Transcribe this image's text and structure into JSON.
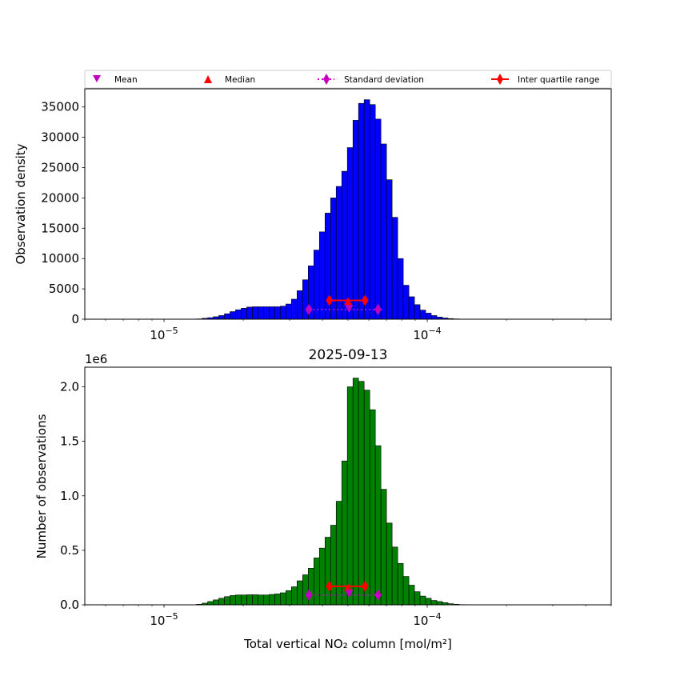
{
  "legend": {
    "placement": "top",
    "entries": [
      {
        "label": "Mean",
        "marker": "triangle-down",
        "color": "#c000c0"
      },
      {
        "label": "Median",
        "marker": "triangle-up",
        "color": "#ff0000"
      },
      {
        "label": "Standard deviation",
        "marker": "diamond-dotted-line",
        "color": "#c000c0"
      },
      {
        "label": "Inter quartile range",
        "marker": "diamond-solid-line",
        "color": "#ff0000"
      }
    ]
  },
  "chart_data": [
    {
      "type": "bar",
      "xscale": "log",
      "xlim": [
        5e-06,
        0.0005
      ],
      "ylim": [
        0,
        38000
      ],
      "title": "",
      "xlabel": "",
      "ylabel": "Observation density",
      "yticks": [
        0,
        5000,
        10000,
        15000,
        20000,
        25000,
        30000,
        35000
      ],
      "ytick_labels": [
        "0",
        "5000",
        "10000",
        "15000",
        "20000",
        "25000",
        "30000",
        "35000"
      ],
      "xtick_labels": [
        "10^-5",
        "10^-4"
      ],
      "bar_color": "#0000ff",
      "bin_edges": [
        5e-06,
        5.25e-06,
        5.51e-06,
        5.79e-06,
        6.08e-06,
        6.38e-06,
        6.7e-06,
        7.04e-06,
        7.39e-06,
        7.76e-06,
        8.15e-06,
        8.56e-06,
        8.99e-06,
        9.44e-06,
        9.91e-06,
        1.04e-05,
        1.092e-05,
        1.147e-05,
        1.204e-05,
        1.265e-05,
        1.328e-05,
        1.395e-05,
        1.465e-05,
        1.538e-05,
        1.615e-05,
        1.696e-05,
        1.781e-05,
        1.87e-05,
        1.964e-05,
        2.062e-05,
        2.166e-05,
        2.274e-05,
        2.388e-05,
        2.508e-05,
        2.633e-05,
        2.765e-05,
        2.904e-05,
        3.049e-05,
        3.202e-05,
        3.363e-05,
        3.531e-05,
        3.708e-05,
        3.894e-05,
        4.089e-05,
        4.294e-05,
        4.509e-05,
        4.735e-05,
        4.972e-05,
        5.222e-05,
        5.483e-05,
        5.758e-05,
        6.047e-05,
        6.35e-05,
        6.668e-05,
        7.003e-05,
        7.354e-05,
        7.722e-05,
        8.109e-05,
        8.516e-05,
        8.943e-05,
        9.391e-05,
        9.862e-05,
        0.00010356,
        0.00010876,
        0.00011421,
        0.00011993,
        0.00012595,
        0.00013226,
        0.00013889,
        0.00014585,
        0.00015316,
        0.00016084,
        0.0001689,
        0.00017737,
        0.00018626,
        0.0001956,
        0.0002054,
        0.0002157,
        0.0002265,
        0.0002379,
        0.0002498,
        0.0002623,
        0.0002755,
        0.0002893,
        0.0003038,
        0.000319,
        0.000335,
        0.0003518,
        0.0003695,
        0.000388,
        0.0004074,
        0.0004279,
        0.0004493,
        0.0004719,
        0.0005
      ],
      "values": [
        0,
        0,
        0,
        0,
        0,
        0,
        0,
        0,
        0,
        0,
        0,
        0,
        0,
        0,
        0,
        0,
        0,
        0,
        0,
        0,
        50,
        150,
        250,
        400,
        600,
        900,
        1250,
        1550,
        1800,
        2000,
        2050,
        2050,
        2050,
        2050,
        2050,
        2150,
        2500,
        3300,
        4700,
        6500,
        8800,
        11400,
        14400,
        17500,
        20000,
        21900,
        24400,
        28300,
        32800,
        35600,
        36200,
        35400,
        33000,
        28900,
        23000,
        16800,
        10000,
        5600,
        3700,
        2400,
        1500,
        1000,
        600,
        350,
        200,
        100,
        50,
        20,
        0,
        0,
        0,
        0,
        0,
        0,
        0,
        0,
        0,
        0,
        0,
        0,
        0,
        0,
        0,
        0,
        0,
        0,
        0,
        0,
        0,
        0,
        0,
        0,
        0,
        0
      ],
      "stats": {
        "mean": {
          "x": 5.05e-05,
          "y": 1700
        },
        "median": {
          "x": 5e-05,
          "y": 3000
        },
        "std": {
          "x_low": 3.55e-05,
          "x_high": 6.5e-05,
          "y": 1600
        },
        "iqr": {
          "x_low": 4.25e-05,
          "x_high": 5.8e-05,
          "y": 3100
        }
      }
    },
    {
      "type": "bar",
      "xscale": "log",
      "xlim": [
        5e-06,
        0.0005
      ],
      "ylim": [
        0,
        2.18
      ],
      "title": "2025-09-13",
      "xlabel": "Total vertical NO₂ column [mol/m²]",
      "ylabel": "Number of observations",
      "y_offset_label": "1e6",
      "yticks": [
        0.0,
        0.5,
        1.0,
        1.5,
        2.0
      ],
      "ytick_labels": [
        "0.0",
        "0.5",
        "1.0",
        "1.5",
        "2.0"
      ],
      "xtick_labels": [
        "10^-5",
        "10^-4"
      ],
      "bar_color": "#008000",
      "bin_edges": [
        5e-06,
        5.25e-06,
        5.51e-06,
        5.79e-06,
        6.08e-06,
        6.38e-06,
        6.7e-06,
        7.04e-06,
        7.39e-06,
        7.76e-06,
        8.15e-06,
        8.56e-06,
        8.99e-06,
        9.44e-06,
        9.91e-06,
        1.04e-05,
        1.092e-05,
        1.147e-05,
        1.204e-05,
        1.265e-05,
        1.328e-05,
        1.395e-05,
        1.465e-05,
        1.538e-05,
        1.615e-05,
        1.696e-05,
        1.781e-05,
        1.87e-05,
        1.964e-05,
        2.062e-05,
        2.166e-05,
        2.274e-05,
        2.388e-05,
        2.508e-05,
        2.633e-05,
        2.765e-05,
        2.904e-05,
        3.049e-05,
        3.202e-05,
        3.363e-05,
        3.531e-05,
        3.708e-05,
        3.894e-05,
        4.089e-05,
        4.294e-05,
        4.509e-05,
        4.735e-05,
        4.972e-05,
        5.222e-05,
        5.483e-05,
        5.758e-05,
        6.047e-05,
        6.35e-05,
        6.668e-05,
        7.003e-05,
        7.354e-05,
        7.722e-05,
        8.109e-05,
        8.516e-05,
        8.943e-05,
        9.391e-05,
        9.862e-05,
        0.00010356,
        0.00010876,
        0.00011421,
        0.00011993,
        0.00012595,
        0.00013226,
        0.00013889,
        0.00014585,
        0.00015316,
        0.00016084,
        0.0001689,
        0.00017737,
        0.00018626,
        0.0001956,
        0.0002054,
        0.0002157,
        0.0002265,
        0.0002379,
        0.0002498,
        0.0002623,
        0.0002755,
        0.0002893,
        0.0003038,
        0.000319,
        0.000335,
        0.0003518,
        0.0003695,
        0.000388,
        0.0004074,
        0.0004279,
        0.0004493,
        0.0004719,
        0.0005
      ],
      "values": [
        0,
        0,
        0,
        0,
        0,
        0,
        0,
        0,
        0,
        0,
        0,
        0,
        0,
        0,
        0,
        0,
        0,
        0,
        0,
        0,
        0.005,
        0.015,
        0.03,
        0.045,
        0.06,
        0.075,
        0.085,
        0.09,
        0.09,
        0.092,
        0.092,
        0.09,
        0.09,
        0.095,
        0.1,
        0.11,
        0.13,
        0.165,
        0.22,
        0.275,
        0.335,
        0.43,
        0.52,
        0.62,
        0.73,
        0.95,
        1.32,
        2.0,
        2.08,
        2.05,
        1.97,
        1.79,
        1.46,
        1.06,
        0.75,
        0.53,
        0.38,
        0.26,
        0.18,
        0.12,
        0.08,
        0.06,
        0.04,
        0.03,
        0.02,
        0.01,
        0.005,
        0.002,
        0,
        0,
        0,
        0,
        0,
        0,
        0,
        0,
        0,
        0,
        0,
        0,
        0,
        0,
        0,
        0,
        0,
        0,
        0,
        0,
        0,
        0,
        0,
        0,
        0,
        0
      ],
      "stats": {
        "mean": {
          "x": 5.05e-05,
          "y": 0.1
        },
        "median": {
          "x": 5e-05,
          "y": 0.16
        },
        "std": {
          "x_low": 3.55e-05,
          "x_high": 6.5e-05,
          "y": 0.09
        },
        "iqr": {
          "x_low": 4.25e-05,
          "x_high": 5.8e-05,
          "y": 0.17
        }
      }
    }
  ]
}
